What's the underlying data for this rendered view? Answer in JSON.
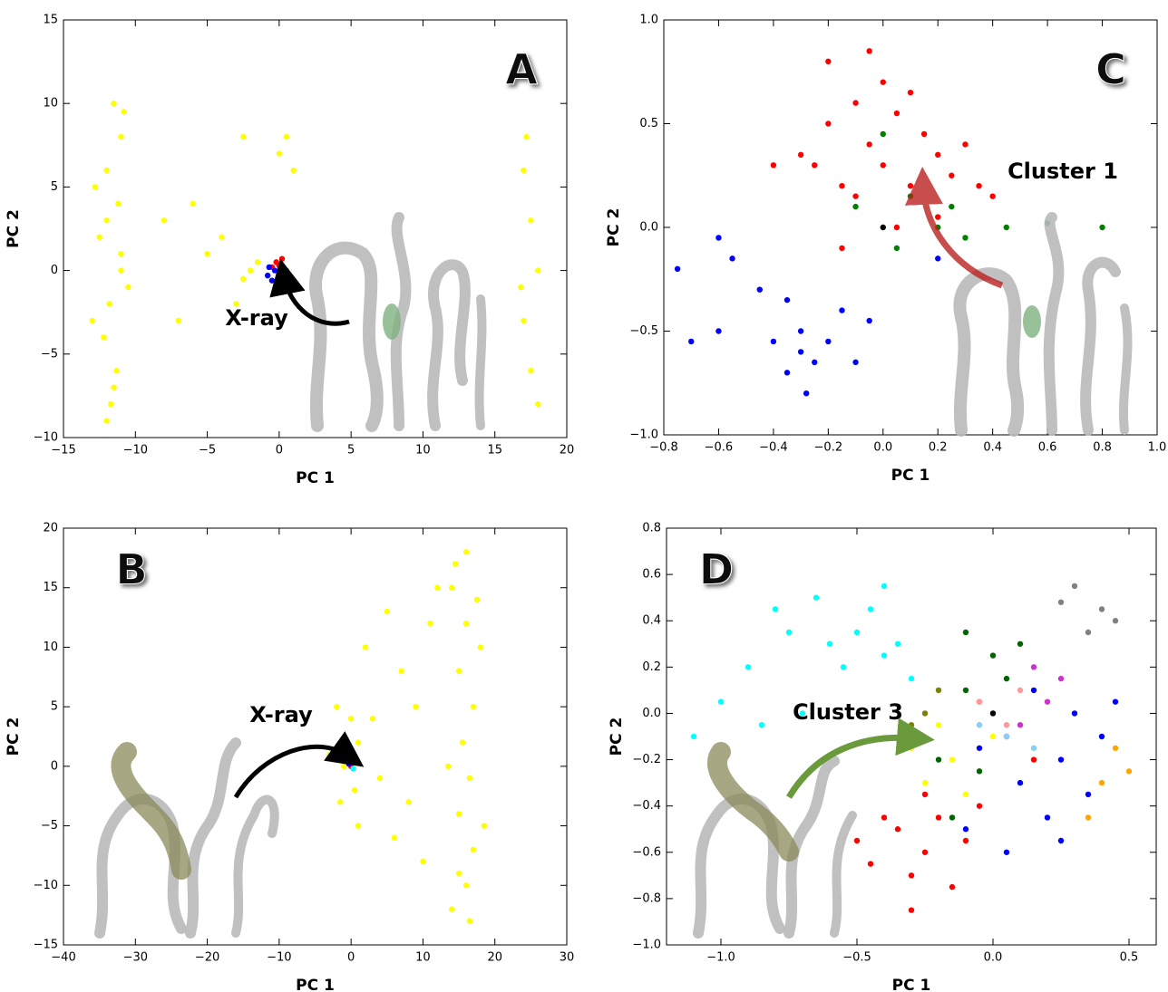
{
  "chart_data": [
    {
      "type": "scatter",
      "panel_label": "A",
      "annotation": "X-ray",
      "xlabel": "PC 1",
      "ylabel": "PC 2",
      "xlim": [
        -15,
        20
      ],
      "ylim": [
        -10,
        15
      ],
      "xticks": [
        {
          "value": -15,
          "label": "−15"
        },
        {
          "value": -10,
          "label": "−10"
        },
        {
          "value": -5,
          "label": "−5"
        },
        0,
        5,
        10,
        15,
        20
      ],
      "yticks": [
        {
          "value": -10,
          "label": "−10"
        },
        {
          "value": -5,
          "label": "−5"
        },
        0,
        5,
        10,
        15
      ],
      "series": [
        {
          "color": "#ffff00",
          "x": [
            -11.5,
            -11,
            -12,
            -11.2,
            -12.5,
            -11,
            -11.8,
            -12.2,
            -11.3,
            -11.7,
            -12,
            -10.8,
            -12.8,
            -10.5,
            -13,
            -11,
            -12,
            -11.5,
            -8,
            -7,
            -5,
            -6,
            -3,
            -4,
            -2,
            -1.5,
            -2.5,
            0,
            0.5,
            1,
            -2.5,
            17,
            17.5,
            18,
            17,
            17.5,
            18,
            17.2,
            16.8
          ],
          "y": [
            10,
            8,
            6,
            4,
            2,
            0,
            -2,
            -4,
            -6,
            -8,
            -9,
            9.5,
            5,
            -1,
            -3,
            1,
            3,
            -7,
            3,
            -3,
            1,
            4,
            -2,
            2,
            0,
            0.5,
            -0.5,
            7,
            8,
            6,
            8,
            6,
            3,
            0,
            -3,
            -6,
            -8,
            8,
            -1
          ]
        },
        {
          "color": "#ff0000",
          "x": [
            -0.2,
            0.2,
            0,
            -0.5,
            0.3
          ],
          "y": [
            0.5,
            0.7,
            0.3,
            0.2,
            0.1
          ]
        },
        {
          "color": "#0000ff",
          "x": [
            -0.8,
            -0.5,
            -0.3,
            -0.7
          ],
          "y": [
            -0.3,
            -0.6,
            0,
            0.2
          ]
        },
        {
          "color": "#008000",
          "x": [
            0.2,
            0.5,
            0.1,
            0.7
          ],
          "y": [
            -0.2,
            0,
            -0.5,
            -0.3
          ]
        }
      ]
    },
    {
      "type": "scatter",
      "panel_label": "C",
      "annotation": "Cluster 1",
      "xlabel": "PC 1",
      "ylabel": "PC 2",
      "xlim": [
        -0.8,
        1
      ],
      "ylim": [
        -1,
        1
      ],
      "xticks": [
        {
          "value": -0.8,
          "label": "−0.8"
        },
        {
          "value": -0.6,
          "label": "−0.6"
        },
        {
          "value": -0.4,
          "label": "−0.4"
        },
        {
          "value": -0.2,
          "label": "−0.2"
        },
        {
          "value": 0,
          "label": "0.0"
        },
        0.2,
        0.4,
        0.6,
        0.8,
        {
          "value": 1,
          "label": "1.0"
        }
      ],
      "yticks": [
        {
          "value": -1,
          "label": "−1.0"
        },
        {
          "value": -0.5,
          "label": "−0.5"
        },
        {
          "value": 0,
          "label": "0.0"
        },
        0.5,
        {
          "value": 1,
          "label": "1.0"
        }
      ],
      "series": [
        {
          "color": "#ff0000",
          "x": [
            -0.25,
            -0.2,
            -0.15,
            -0.1,
            -0.05,
            0,
            0.05,
            0.1,
            0.15,
            0.2,
            0.25,
            0.3,
            -0.3,
            0,
            -0.1,
            0.1,
            -0.2,
            0.35,
            -0.4,
            0.2,
            -0.05,
            0.4,
            -0.15,
            0.05
          ],
          "y": [
            0.3,
            0.5,
            0.2,
            0.6,
            0.4,
            0.3,
            0.55,
            0.2,
            0.45,
            0.35,
            0.25,
            0.4,
            0.35,
            0.7,
            0.15,
            0.65,
            0.8,
            0.2,
            0.3,
            0.05,
            0.85,
            0.15,
            -0.1,
            0
          ]
        },
        {
          "color": "#008000",
          "x": [
            0,
            0.1,
            0.2,
            0.3,
            0.45,
            0.6,
            0.8,
            0.05,
            -0.1,
            0.25
          ],
          "y": [
            0.45,
            0.15,
            0,
            -0.05,
            0,
            0.02,
            0,
            -0.1,
            0.1,
            0.1
          ]
        },
        {
          "color": "#0000ff",
          "x": [
            -0.75,
            -0.6,
            -0.55,
            -0.45,
            -0.35,
            -0.3,
            -0.3,
            -0.25,
            -0.35,
            -0.28,
            -0.2,
            -0.7,
            -0.6,
            -0.15,
            -0.1,
            -0.05,
            0.2,
            -0.4
          ],
          "y": [
            -0.2,
            -0.05,
            -0.15,
            -0.3,
            -0.35,
            -0.5,
            -0.6,
            -0.65,
            -0.7,
            -0.8,
            -0.55,
            -0.55,
            -0.5,
            -0.4,
            -0.65,
            -0.45,
            -0.15,
            -0.55
          ]
        },
        {
          "color": "#000000",
          "x": [
            0
          ],
          "y": [
            0
          ]
        }
      ]
    },
    {
      "type": "scatter",
      "panel_label": "B",
      "annotation": "X-ray",
      "xlabel": "PC 1",
      "ylabel": "PC 2",
      "xlim": [
        -40,
        30
      ],
      "ylim": [
        -15,
        20
      ],
      "xticks": [
        {
          "value": -40,
          "label": "−40"
        },
        {
          "value": -30,
          "label": "−30"
        },
        {
          "value": -20,
          "label": "−20"
        },
        {
          "value": -10,
          "label": "−10"
        },
        0,
        10,
        20,
        30
      ],
      "yticks": [
        {
          "value": -15,
          "label": "−15"
        },
        {
          "value": -10,
          "label": "−10"
        },
        {
          "value": -5,
          "label": "−5"
        },
        0,
        5,
        10,
        15,
        20
      ],
      "series": [
        {
          "color": "#ffff00",
          "x": [
            14,
            16,
            15,
            17,
            15.5,
            16.5,
            15,
            17,
            16,
            16.5,
            14.5,
            18,
            13.5,
            18.5,
            15,
            17.5,
            16,
            14,
            2,
            3,
            5,
            7,
            9,
            11,
            8,
            10,
            6,
            4,
            12,
            -2,
            0,
            -1,
            0.5,
            -1.5,
            1,
            -3,
            1
          ],
          "y": [
            15,
            12,
            8,
            5,
            2,
            -1,
            -4,
            -7,
            -10,
            -13,
            17,
            10,
            0,
            -5,
            -9,
            14,
            18,
            -12,
            10,
            4,
            13,
            8,
            5,
            12,
            -3,
            -8,
            -6,
            -1,
            15,
            5,
            4,
            0,
            -2,
            -3,
            2,
            1,
            -5
          ]
        },
        {
          "color": "#ff0000",
          "x": [
            0
          ],
          "y": [
            0
          ]
        },
        {
          "color": "#0000ff",
          "x": [
            -0.3
          ],
          "y": [
            0.2
          ]
        },
        {
          "color": "#00ffff",
          "x": [
            0.3
          ],
          "y": [
            -0.2
          ]
        }
      ]
    },
    {
      "type": "scatter",
      "panel_label": "D",
      "annotation": "Cluster 3",
      "xlabel": "PC 1",
      "ylabel": "PC 2",
      "xlim": [
        -1.2,
        0.6
      ],
      "ylim": [
        -1,
        0.8
      ],
      "xticks": [
        {
          "value": -1,
          "label": "−1.0"
        },
        {
          "value": -0.5,
          "label": "−0.5"
        },
        {
          "value": 0,
          "label": "0.0"
        },
        0.5
      ],
      "yticks": [
        {
          "value": -1,
          "label": "−1.0"
        },
        {
          "value": -0.8,
          "label": "−0.8"
        },
        {
          "value": -0.6,
          "label": "−0.6"
        },
        {
          "value": -0.4,
          "label": "−0.4"
        },
        {
          "value": -0.2,
          "label": "−0.2"
        },
        {
          "value": 0,
          "label": "0.0"
        },
        0.2,
        0.4,
        0.6,
        0.8
      ],
      "series": [
        {
          "color": "#00ffff",
          "x": [
            -0.5,
            -0.4,
            -0.45,
            -0.35,
            -0.55,
            -0.4,
            -0.6,
            -0.3,
            -0.75,
            -0.9,
            -1,
            -0.85,
            -0.7,
            -0.65,
            -0.2,
            -1.1,
            -0.8
          ],
          "y": [
            0.35,
            0.25,
            0.45,
            0.3,
            0.2,
            0.55,
            0.3,
            0.15,
            0.35,
            0.2,
            0.05,
            -0.05,
            0,
            0.5,
            0.1,
            -0.1,
            0.45
          ]
        },
        {
          "color": "#ff0000",
          "x": [
            -0.35,
            -0.25,
            -0.3,
            -0.4,
            -0.2,
            -0.15,
            -0.45,
            -0.3,
            -0.1,
            -0.25,
            -0.5,
            -0.05,
            0.05,
            0.15,
            -0.05
          ],
          "y": [
            -0.5,
            -0.6,
            -0.7,
            -0.45,
            -0.45,
            -0.75,
            -0.65,
            -0.85,
            -0.55,
            -0.35,
            -0.55,
            -0.4,
            -0.1,
            -0.2,
            0.05
          ]
        },
        {
          "color": "#0000ff",
          "x": [
            0.1,
            0.25,
            0.3,
            0.2,
            0.4,
            0.35,
            -0.1,
            0.15,
            0.45,
            0.25,
            0.05,
            -0.05
          ],
          "y": [
            -0.3,
            -0.2,
            0,
            -0.45,
            -0.1,
            -0.35,
            -0.5,
            0.1,
            0.05,
            -0.55,
            -0.6,
            -0.15
          ]
        },
        {
          "color": "#006400",
          "x": [
            0,
            0.1,
            -0.1,
            -0.05,
            -0.15,
            0.05,
            -0.2,
            -0.1
          ],
          "y": [
            0.25,
            0.3,
            0.1,
            -0.25,
            -0.45,
            0.15,
            -0.2,
            0.35
          ]
        },
        {
          "color": "#ffff00",
          "x": [
            -0.15,
            -0.1,
            -0.25,
            0,
            -0.2,
            -0.3
          ],
          "y": [
            -0.2,
            -0.35,
            -0.3,
            -0.1,
            -0.05,
            -0.15
          ]
        },
        {
          "color": "#cc33cc",
          "x": [
            0.15,
            0.2,
            0.1,
            0.25
          ],
          "y": [
            0.2,
            0.05,
            -0.05,
            0.15
          ]
        },
        {
          "color": "#ff9999",
          "x": [
            0,
            0.05,
            -0.05,
            0.1
          ],
          "y": [
            0,
            -0.05,
            0.05,
            0.1
          ]
        },
        {
          "color": "#87cefa",
          "x": [
            0.05,
            0.15,
            -0.05
          ],
          "y": [
            -0.1,
            -0.15,
            -0.05
          ]
        },
        {
          "color": "#808000",
          "x": [
            -0.25,
            -0.2,
            -0.3
          ],
          "y": [
            0,
            0.1,
            -0.05
          ]
        },
        {
          "color": "#ffa500",
          "x": [
            0.4,
            0.5,
            0.45,
            0.35
          ],
          "y": [
            -0.3,
            -0.25,
            -0.15,
            -0.45
          ]
        },
        {
          "color": "#808080",
          "x": [
            0.3,
            0.4,
            0.35,
            0.45,
            0.25
          ],
          "y": [
            0.55,
            0.45,
            0.35,
            0.4,
            0.48
          ]
        },
        {
          "color": "#000000",
          "x": [
            0
          ],
          "y": [
            0
          ]
        }
      ]
    }
  ]
}
